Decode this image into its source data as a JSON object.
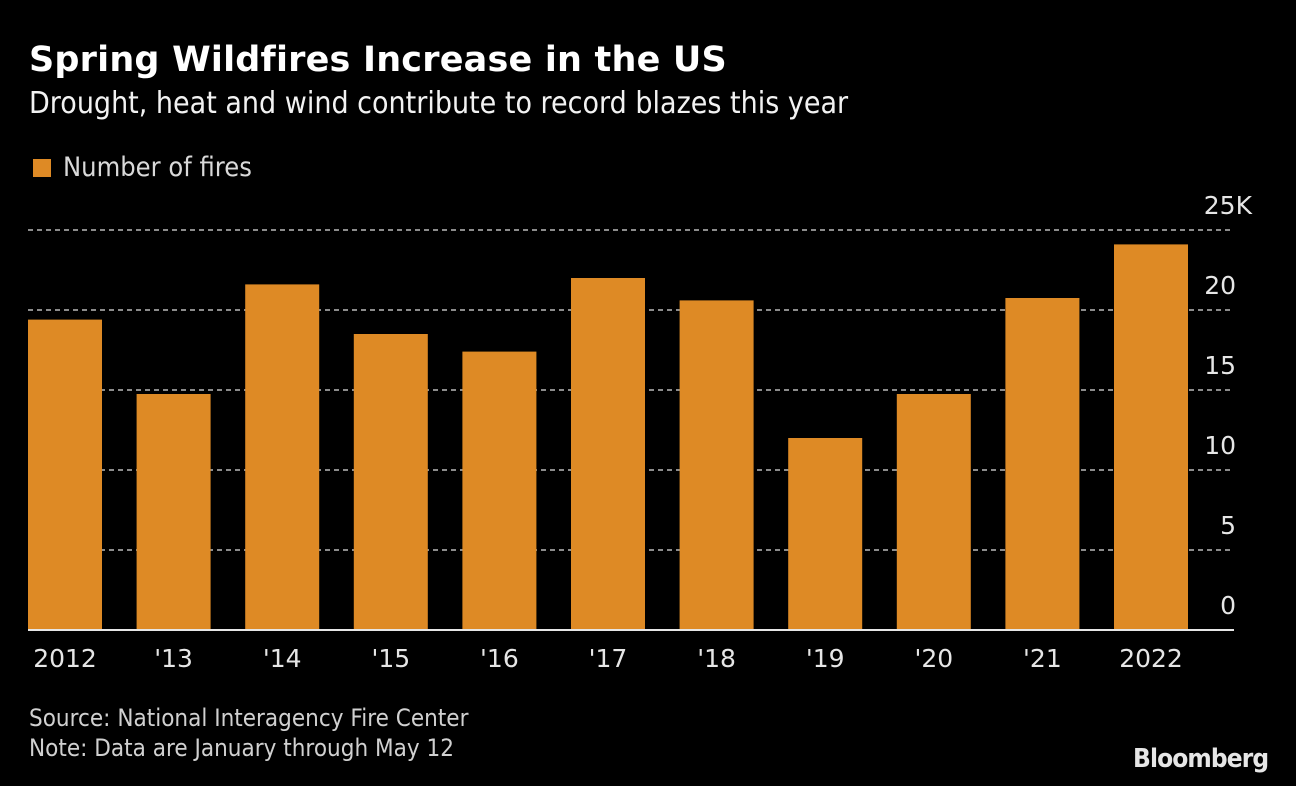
{
  "header": {
    "title": "Spring Wildfires Increase in the US",
    "subtitle": "Drought, heat and wind contribute to record blazes this year"
  },
  "legend": {
    "items": [
      {
        "label": "Number of fires",
        "color": "#de8a25"
      }
    ]
  },
  "footer": {
    "source": "Source: National Interagency Fire Center",
    "note": "Note: Data are January through May 12",
    "brand": "Bloomberg"
  },
  "colors": {
    "background": "#000000",
    "bar": "#de8a25",
    "grid": "#8c8c8c",
    "axis": "#e6e6e6",
    "text": "#e6e6e6"
  },
  "chart_data": {
    "type": "bar",
    "title": "Spring Wildfires Increase in the US",
    "subtitle": "Drought, heat and wind contribute to record blazes this year",
    "xlabel": "",
    "ylabel": "Number of fires (thousands)",
    "categories": [
      "2012",
      "'13",
      "'14",
      "'15",
      "'16",
      "'17",
      "'18",
      "'19",
      "'20",
      "'21",
      "2022"
    ],
    "series": [
      {
        "name": "Number of fires",
        "color": "#de8a25",
        "values": [
          19.4,
          14.75,
          21.6,
          18.5,
          17.4,
          22.0,
          20.6,
          12.0,
          14.75,
          20.75,
          24.1
        ]
      }
    ],
    "ylim": [
      0,
      25
    ],
    "yticks": [
      0,
      5,
      10,
      15,
      20,
      25
    ],
    "ytick_labels": [
      "0",
      "5",
      "10",
      "15",
      "20",
      "25K"
    ],
    "y_axis_side": "right",
    "grid": true,
    "grid_style": "dashed",
    "legend_position": "top-left"
  }
}
